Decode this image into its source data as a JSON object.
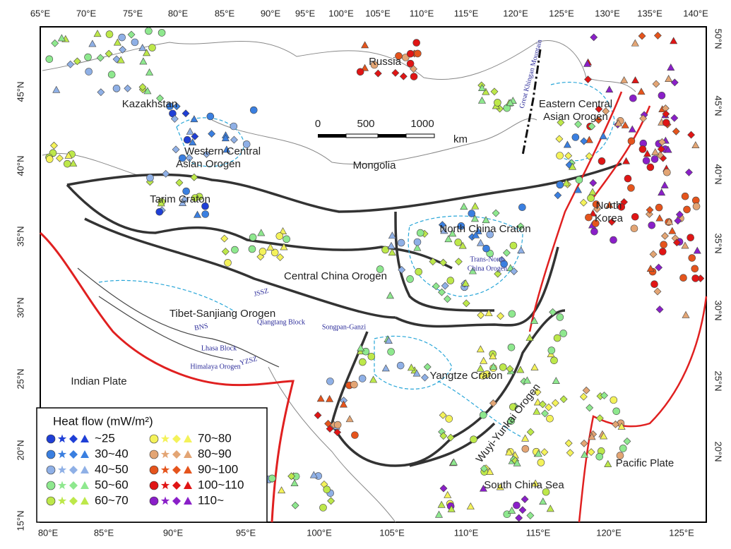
{
  "map": {
    "top_ticks": [
      "65°E",
      "70°E",
      "75°E",
      "80°E",
      "85°E",
      "90°E",
      "95°E",
      "100°E",
      "105°E",
      "110°E",
      "115°E",
      "120°E",
      "125°E",
      "130°E",
      "135°E",
      "140°E"
    ],
    "bottom_ticks": [
      "80°E",
      "85°E",
      "90°E",
      "95°E",
      "100°E",
      "105°E",
      "110°E",
      "115°E",
      "120°E",
      "125°E"
    ],
    "left_ticks": [
      "45°N",
      "40°N",
      "35°N",
      "30°N",
      "25°N",
      "20°N",
      "15°N"
    ],
    "right_ticks": [
      "50°N",
      "45°N",
      "40°N",
      "35°N",
      "30°N",
      "25°N",
      "20°N"
    ],
    "regions": [
      {
        "lines": [
          "Kazakhstan"
        ]
      },
      {
        "lines": [
          "Russia"
        ]
      },
      {
        "lines": [
          "Mongolia"
        ]
      },
      {
        "lines": [
          "Western Central",
          "Asian Orogen"
        ]
      },
      {
        "lines": [
          "Tarim Craton"
        ]
      },
      {
        "lines": [
          "Central China Orogen"
        ]
      },
      {
        "lines": [
          "North China Craton"
        ]
      },
      {
        "lines": [
          "Eastern Central",
          "Asian Orogen"
        ]
      },
      {
        "lines": [
          "North",
          "Korea"
        ]
      },
      {
        "lines": [
          "Tibet-Sanjiang Orogen"
        ]
      },
      {
        "lines": [
          "Yangtze Craton"
        ]
      },
      {
        "lines": [
          "Wuyi-Yunkai Orogen"
        ]
      },
      {
        "lines": [
          "South China Sea"
        ]
      },
      {
        "lines": [
          "Indian Plate"
        ]
      },
      {
        "lines": [
          "Pacific Plate"
        ]
      }
    ],
    "minor_labels": [
      "Qiangtang Block",
      "Songpan-Ganzi",
      "Lhasa Block",
      "Himalaya Orogen",
      "Trans-North",
      "China Orogen",
      "Great Khingan Mountain",
      "JSSZ",
      "BNS",
      "YZSZ"
    ],
    "scale_bar": {
      "labels": [
        "0",
        "500",
        "1000"
      ],
      "unit": "km"
    },
    "legend": {
      "title": "Heat flow (mW/m²)",
      "classes": [
        {
          "label": "~25",
          "color": "#1f3fd6"
        },
        {
          "label": "30~40",
          "color": "#3a7fe0"
        },
        {
          "label": "40~50",
          "color": "#8fb0e6"
        },
        {
          "label": "50~60",
          "color": "#8ee88e"
        },
        {
          "label": "60~70",
          "color": "#bde84a"
        },
        {
          "label": "70~80",
          "color": "#f4f25a"
        },
        {
          "label": "80~90",
          "color": "#e3a574"
        },
        {
          "label": "90~100",
          "color": "#e5541c"
        },
        {
          "label": "100~110",
          "color": "#e01515"
        },
        {
          "label": "110~",
          "color": "#8a1fc8"
        }
      ]
    }
  }
}
